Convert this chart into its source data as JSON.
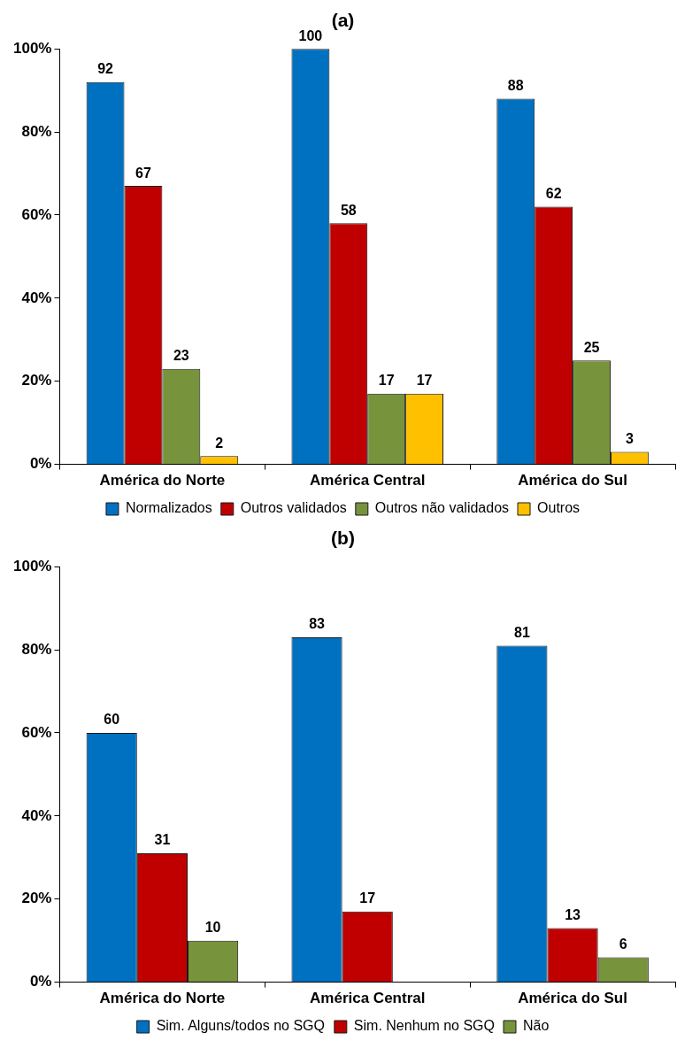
{
  "chart_data": [
    {
      "type": "bar",
      "title": "(a)",
      "categories": [
        "América do Norte",
        "América Central",
        "América do Sul"
      ],
      "series": [
        {
          "name": "Normalizados",
          "color": "#0070c0",
          "values": [
            92,
            100,
            88
          ]
        },
        {
          "name": "Outros validados",
          "color": "#c00000",
          "values": [
            67,
            58,
            62
          ]
        },
        {
          "name": "Outros não validados",
          "color": "#77933c",
          "values": [
            23,
            17,
            25
          ]
        },
        {
          "name": "Outros",
          "color": "#ffc000",
          "values": [
            2,
            17,
            3
          ]
        }
      ],
      "ylim": [
        0,
        100
      ],
      "yticks": [
        {
          "value": 0,
          "label": "0%"
        },
        {
          "value": 20,
          "label": "20%"
        },
        {
          "value": 40,
          "label": "40%"
        },
        {
          "value": 60,
          "label": "60%"
        },
        {
          "value": 80,
          "label": "80%"
        },
        {
          "value": 100,
          "label": "100%"
        }
      ],
      "grid": false,
      "legend": "bottom",
      "data_labels": true
    },
    {
      "type": "bar",
      "title": "(b)",
      "categories": [
        "América do Norte",
        "América Central",
        "América do Sul"
      ],
      "series": [
        {
          "name": "Sim. Alguns/todos no SGQ",
          "color": "#0070c0",
          "values": [
            60,
            83,
            81
          ]
        },
        {
          "name": "Sim. Nenhum no SGQ",
          "color": "#c00000",
          "values": [
            31,
            17,
            13
          ]
        },
        {
          "name": "Não",
          "color": "#77933c",
          "values": [
            10,
            null,
            6
          ]
        }
      ],
      "ylim": [
        0,
        100
      ],
      "yticks": [
        {
          "value": 0,
          "label": "0%"
        },
        {
          "value": 20,
          "label": "20%"
        },
        {
          "value": 40,
          "label": "40%"
        },
        {
          "value": 60,
          "label": "60%"
        },
        {
          "value": 80,
          "label": "80%"
        },
        {
          "value": 100,
          "label": "100%"
        }
      ],
      "grid": false,
      "legend": "bottom",
      "data_labels": true
    }
  ]
}
